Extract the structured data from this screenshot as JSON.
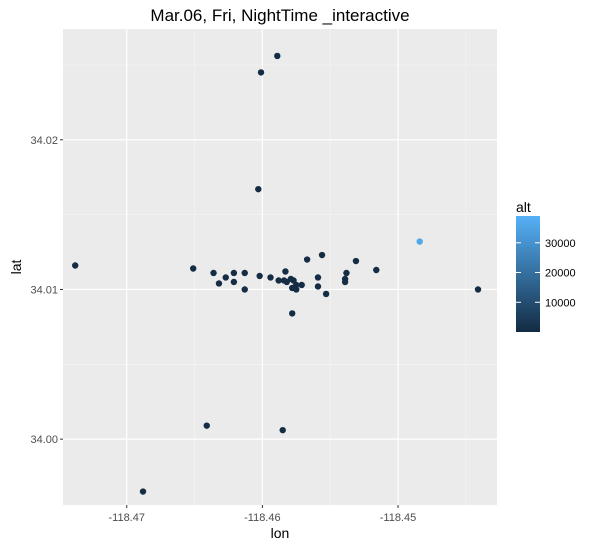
{
  "chart_data": {
    "type": "scatter",
    "title": "Mar.06, Fri, NightTime _interactive",
    "xlabel": "lon",
    "ylabel": "lat",
    "xlim": [
      -118.4747,
      -118.4427
    ],
    "ylim": [
      33.9956,
      34.0274
    ],
    "x_ticks": [
      -118.47,
      -118.46,
      -118.45
    ],
    "x_tick_labels": [
      "-118.47",
      "-118.46",
      "-118.45"
    ],
    "y_ticks": [
      34.0,
      34.01,
      34.02
    ],
    "y_tick_labels": [
      "34.00",
      "34.01",
      "34.02"
    ],
    "grid": true,
    "legend": {
      "title": "alt",
      "type": "colorbar",
      "placement": "right",
      "range": [
        0,
        39000
      ],
      "ticks": [
        10000,
        20000,
        30000
      ],
      "tick_labels": [
        "10000",
        "20000",
        "30000"
      ],
      "color_low": "#132B43",
      "color_high": "#56B1F7"
    },
    "colors": {
      "panel_background": "#EBEBEB",
      "grid_major": "#FFFFFF",
      "point_default": "#1B3550",
      "point_high_alt": "#4DA6EE"
    },
    "points": [
      {
        "lon": -118.4738,
        "lat": 34.0116,
        "alt": 500
      },
      {
        "lon": -118.4688,
        "lat": 33.9965,
        "alt": 500
      },
      {
        "lon": -118.4651,
        "lat": 34.0114,
        "alt": 500
      },
      {
        "lon": -118.4641,
        "lat": 34.0009,
        "alt": 500
      },
      {
        "lon": -118.4636,
        "lat": 34.0111,
        "alt": 500
      },
      {
        "lon": -118.4632,
        "lat": 34.0104,
        "alt": 500
      },
      {
        "lon": -118.4627,
        "lat": 34.0108,
        "alt": 500
      },
      {
        "lon": -118.4621,
        "lat": 34.0111,
        "alt": 500
      },
      {
        "lon": -118.4621,
        "lat": 34.0105,
        "alt": 500
      },
      {
        "lon": -118.4613,
        "lat": 34.0111,
        "alt": 500
      },
      {
        "lon": -118.4613,
        "lat": 34.01,
        "alt": 500
      },
      {
        "lon": -118.4603,
        "lat": 34.0167,
        "alt": 500
      },
      {
        "lon": -118.4601,
        "lat": 34.0245,
        "alt": 500
      },
      {
        "lon": -118.4602,
        "lat": 34.0109,
        "alt": 500
      },
      {
        "lon": -118.4594,
        "lat": 34.0108,
        "alt": 500
      },
      {
        "lon": -118.4589,
        "lat": 34.0256,
        "alt": 500
      },
      {
        "lon": -118.4588,
        "lat": 34.0106,
        "alt": 500
      },
      {
        "lon": -118.4585,
        "lat": 34.0006,
        "alt": 500
      },
      {
        "lon": -118.4584,
        "lat": 34.0106,
        "alt": 500
      },
      {
        "lon": -118.4583,
        "lat": 34.0112,
        "alt": 500
      },
      {
        "lon": -118.4582,
        "lat": 34.0105,
        "alt": 500
      },
      {
        "lon": -118.4579,
        "lat": 34.0107,
        "alt": 500
      },
      {
        "lon": -118.4578,
        "lat": 34.0084,
        "alt": 500
      },
      {
        "lon": -118.4578,
        "lat": 34.0101,
        "alt": 500
      },
      {
        "lon": -118.4577,
        "lat": 34.0106,
        "alt": 500
      },
      {
        "lon": -118.4575,
        "lat": 34.0103,
        "alt": 500
      },
      {
        "lon": -118.4575,
        "lat": 34.01,
        "alt": 500
      },
      {
        "lon": -118.4571,
        "lat": 34.0103,
        "alt": 500
      },
      {
        "lon": -118.4567,
        "lat": 34.012,
        "alt": 500
      },
      {
        "lon": -118.4559,
        "lat": 34.0108,
        "alt": 500
      },
      {
        "lon": -118.4559,
        "lat": 34.0102,
        "alt": 500
      },
      {
        "lon": -118.4556,
        "lat": 34.0123,
        "alt": 500
      },
      {
        "lon": -118.4553,
        "lat": 34.0097,
        "alt": 500
      },
      {
        "lon": -118.4539,
        "lat": 34.0107,
        "alt": 500
      },
      {
        "lon": -118.4539,
        "lat": 34.0105,
        "alt": 500
      },
      {
        "lon": -118.4538,
        "lat": 34.0111,
        "alt": 500
      },
      {
        "lon": -118.4531,
        "lat": 34.0119,
        "alt": 500
      },
      {
        "lon": -118.4516,
        "lat": 34.0113,
        "alt": 500
      },
      {
        "lon": -118.4484,
        "lat": 34.0132,
        "alt": 36000
      },
      {
        "lon": -118.4441,
        "lat": 34.01,
        "alt": 500
      }
    ]
  }
}
